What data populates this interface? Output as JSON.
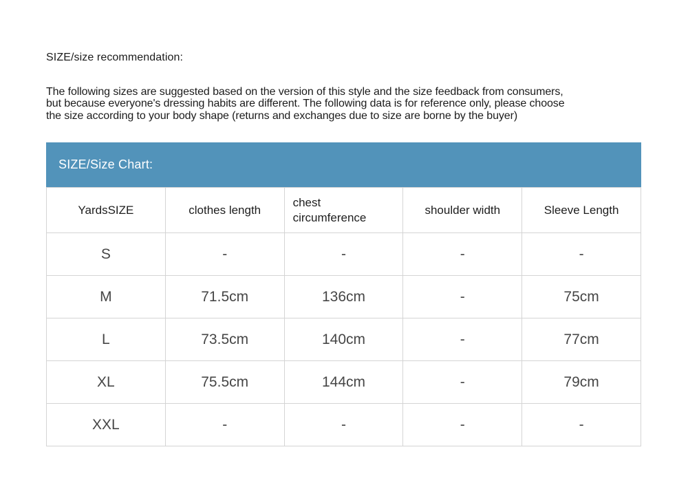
{
  "page": {
    "heading": "SIZE/size recommendation:",
    "description_lines": [
      "The following sizes are suggested based on the version of this style and the size feedback from consumers,",
      "but because everyone's dressing habits are different. The following data is for reference only, please choose",
      "the size according to your body shape (returns and exchanges due to size are borne by the buyer)"
    ]
  },
  "size_chart": {
    "banner_title": "SIZE/Size Chart:",
    "banner_color": "#5293ba",
    "columns": [
      "YardsSIZE",
      "clothes length",
      "chest circumference",
      "shoulder width",
      "Sleeve Length"
    ],
    "rows": [
      {
        "cells": [
          "S",
          "-",
          "-",
          "-",
          "-"
        ]
      },
      {
        "cells": [
          "M",
          "71.5cm",
          "136cm",
          "-",
          "75cm"
        ]
      },
      {
        "cells": [
          "L",
          "73.5cm",
          "140cm",
          "-",
          "77cm"
        ]
      },
      {
        "cells": [
          "XL",
          "75.5cm",
          "144cm",
          "-",
          "79cm"
        ]
      },
      {
        "cells": [
          "XXL",
          "-",
          "-",
          "-",
          "-"
        ]
      }
    ]
  }
}
